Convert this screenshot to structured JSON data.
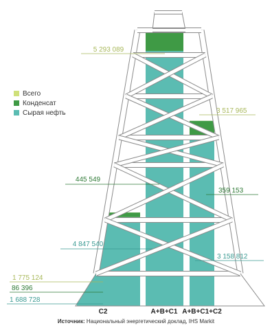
{
  "chart_data": {
    "type": "bar",
    "categories": [
      "C2",
      "A+B+C1",
      "A+B+C1+C2"
    ],
    "series": [
      {
        "name": "Всего",
        "values": [
          1775124,
          5293089,
          3517965
        ]
      },
      {
        "name": "Конденсат",
        "values": [
          86396,
          445549,
          359153
        ]
      },
      {
        "name": "Сырая нефть",
        "values": [
          1688728,
          4847540,
          3158812
        ]
      }
    ],
    "value_labels": {
      "C2": [
        "1 775 124",
        "86 396",
        "1 688 728"
      ],
      "A+B+C1": [
        "5 293 089",
        "445 549",
        "4 847 540"
      ],
      "A+B+C1+C2": [
        "3 517 965",
        "359 153",
        "3 158 812"
      ]
    },
    "colors": {
      "total": "#cfe07a",
      "condensate": "#3f9a45",
      "crude": "#5bbcb2",
      "frame": "#ffffff",
      "frame_outline": "#8a8a8a"
    },
    "source_label": "Источник:",
    "source_text": "Национальный энергетический доклад, IHS Markit"
  }
}
